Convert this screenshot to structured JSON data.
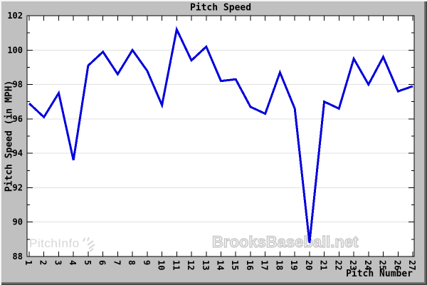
{
  "window": {
    "title": "Pitch Speed"
  },
  "chart_data": {
    "type": "line",
    "title": "Pitch Speed",
    "xlabel": "Pitch Number",
    "ylabel": "Pitch Speed (in MPH)",
    "x": [
      1,
      2,
      3,
      4,
      5,
      6,
      7,
      8,
      9,
      10,
      11,
      12,
      13,
      14,
      15,
      16,
      17,
      18,
      19,
      20,
      21,
      22,
      23,
      24,
      25,
      26,
      27
    ],
    "values": [
      96.9,
      96.1,
      97.5,
      93.6,
      99.1,
      99.9,
      98.6,
      100.0,
      98.8,
      96.8,
      101.2,
      99.4,
      100.2,
      98.2,
      98.3,
      96.7,
      96.3,
      98.7,
      96.6,
      88.8,
      97.0,
      96.6,
      99.5,
      98.0,
      99.6,
      97.6,
      97.9
    ],
    "ylim": [
      88,
      102
    ],
    "ytick_step": 2,
    "xlim": [
      1,
      27
    ],
    "grid": "horizontal-major",
    "legend": "none",
    "line_color": "#0000dd"
  },
  "watermarks": {
    "left": "PitchInfo",
    "right": "BrooksBaseball.net"
  },
  "colors": {
    "canvas_bg": "#c0c0c0",
    "plot_bg": "#ffffff",
    "grid": "#e0e0e0",
    "axis": "#000000",
    "line": "#0000dd",
    "watermark_left": "#d6d6d6",
    "watermark_right_fill": "#efefef",
    "watermark_right_outline": "#c4c4c4"
  }
}
